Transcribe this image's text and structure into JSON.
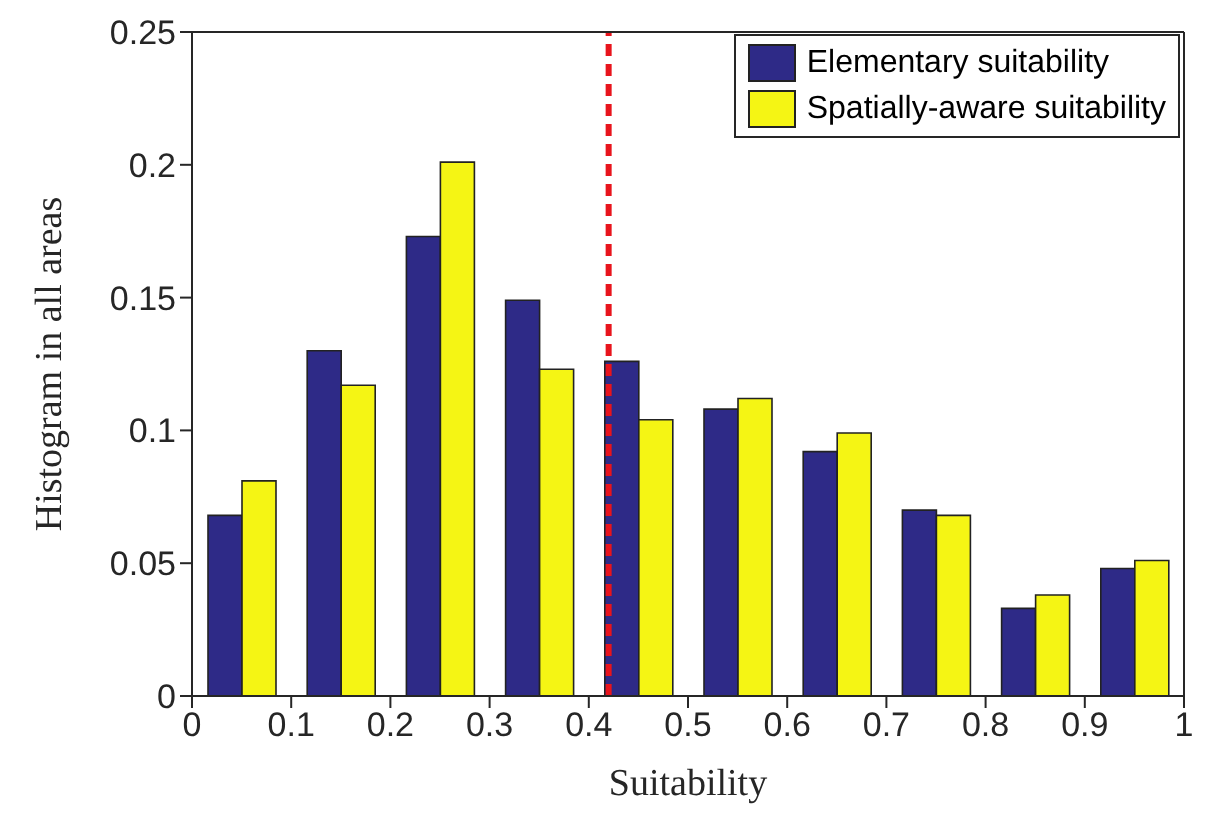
{
  "chart_data": {
    "type": "bar",
    "xlabel": "Suitability",
    "ylabel": "Histogram in all areas",
    "x": [
      0.05,
      0.15,
      0.25,
      0.35,
      0.45,
      0.55,
      0.65,
      0.75,
      0.85,
      0.95
    ],
    "series": [
      {
        "name": "Elementary suitability",
        "color": "#2e2a87",
        "values": [
          0.068,
          0.13,
          0.173,
          0.149,
          0.126,
          0.108,
          0.092,
          0.07,
          0.033,
          0.048
        ]
      },
      {
        "name": "Spatially-aware suitability",
        "color": "#f5f514",
        "values": [
          0.081,
          0.117,
          0.201,
          0.123,
          0.104,
          0.112,
          0.099,
          0.068,
          0.038,
          0.051
        ]
      }
    ],
    "xlim": [
      0,
      1
    ],
    "xticks": [
      0,
      0.1,
      0.2,
      0.3,
      0.4,
      0.5,
      0.6,
      0.7,
      0.8,
      0.9,
      1
    ],
    "ylim": [
      0,
      0.25
    ],
    "yticks": [
      0,
      0.05,
      0.1,
      0.15,
      0.2,
      0.25
    ],
    "ref_lines": [
      {
        "axis": "x",
        "value": 0.42,
        "color": "#e8141c",
        "line_style": "dashed"
      }
    ],
    "legend": "top right",
    "grid": false
  }
}
